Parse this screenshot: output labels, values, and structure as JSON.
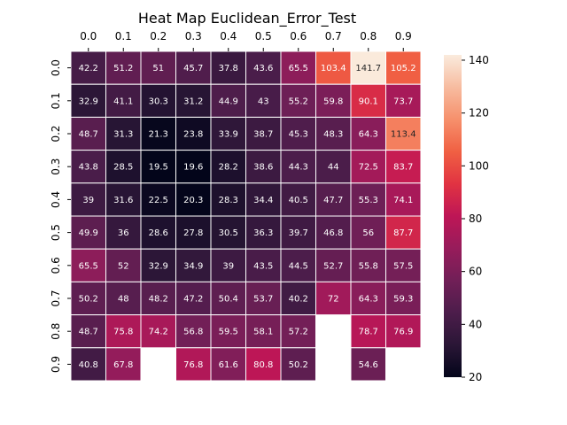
{
  "chart_data": {
    "type": "heatmap",
    "title": "Heat Map Euclidean_Error_Test",
    "x_tick_labels": [
      "0.0",
      "0.1",
      "0.2",
      "0.3",
      "0.4",
      "0.5",
      "0.6",
      "0.7",
      "0.8",
      "0.9"
    ],
    "y_tick_labels": [
      "0.0",
      "0.1",
      "0.2",
      "0.3",
      "0.4",
      "0.5",
      "0.6",
      "0.7",
      "0.8",
      "0.9"
    ],
    "x_ticks_position": "top",
    "values": [
      [
        "42.2",
        "51.2",
        "51",
        "45.7",
        "37.8",
        "43.6",
        "65.5",
        "103.4",
        "141.7",
        "105.2"
      ],
      [
        "32.9",
        "41.1",
        "30.3",
        "31.2",
        "44.9",
        "43",
        "55.2",
        "59.8",
        "90.1",
        "73.7"
      ],
      [
        "48.7",
        "31.3",
        "21.3",
        "23.8",
        "33.9",
        "38.7",
        "45.3",
        "48.3",
        "64.3",
        "113.4"
      ],
      [
        "43.8",
        "28.5",
        "19.5",
        "19.6",
        "28.2",
        "38.6",
        "44.3",
        "44",
        "72.5",
        "83.7"
      ],
      [
        "39",
        "31.6",
        "22.5",
        "20.3",
        "28.3",
        "34.4",
        "40.5",
        "47.7",
        "55.3",
        "74.1"
      ],
      [
        "49.9",
        "36",
        "28.6",
        "27.8",
        "30.5",
        "36.3",
        "39.7",
        "46.8",
        "56",
        "87.7"
      ],
      [
        "65.5",
        "52",
        "32.9",
        "34.9",
        "39",
        "43.5",
        "44.5",
        "52.7",
        "55.8",
        "57.5"
      ],
      [
        "50.2",
        "48",
        "48.2",
        "47.2",
        "50.4",
        "53.7",
        "40.2",
        "72",
        "64.3",
        "59.3"
      ],
      [
        "48.7",
        "75.8",
        "74.2",
        "56.8",
        "59.5",
        "58.1",
        "57.2",
        null,
        "78.7",
        "76.9"
      ],
      [
        "40.8",
        "67.8",
        null,
        "76.8",
        "61.6",
        "80.8",
        "50.2",
        null,
        "54.6",
        null
      ]
    ],
    "colorbar": {
      "min": 20,
      "max": 142,
      "ticks": [
        "20",
        "40",
        "60",
        "80",
        "100",
        "120",
        "140"
      ],
      "colormap": "rocket",
      "stops": [
        "#03051a",
        "#2a1636",
        "#4c1d4b",
        "#711f57",
        "#971c5b",
        "#be1656",
        "#e13342",
        "#f06043",
        "#f6906c",
        "#f7bca0",
        "#faebdd"
      ]
    },
    "grid": false,
    "cell_border_color": "#ffffff"
  }
}
